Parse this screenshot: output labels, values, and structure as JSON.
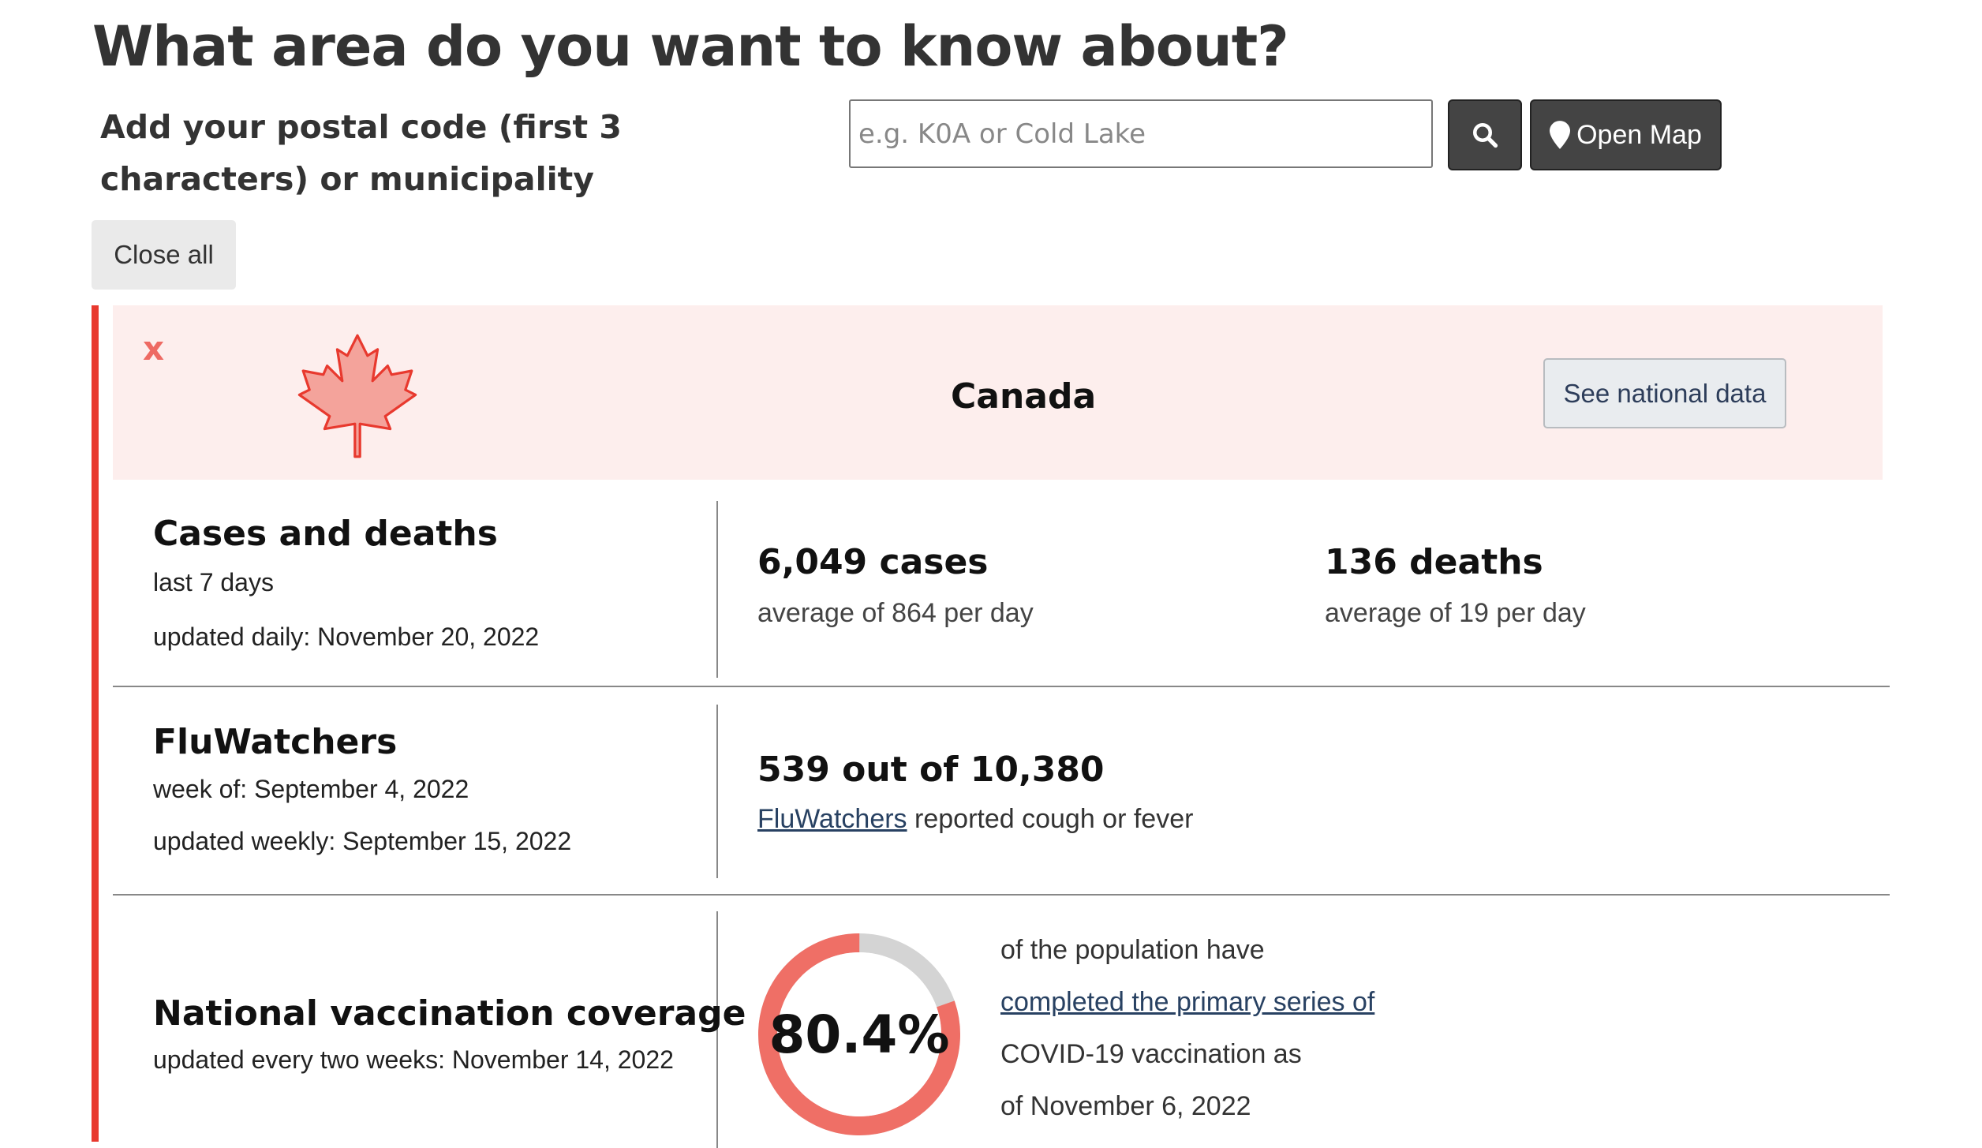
{
  "header": {
    "title": "What area do you want to know about?",
    "search_label": "Add your postal code (first 3 characters) or municipality",
    "search_placeholder": "e.g. K0A or Cold Lake",
    "search_value": "",
    "open_map_label": "Open Map",
    "close_all_label": "Close all"
  },
  "card": {
    "close_label": "x",
    "region": "Canada",
    "national_data_label": "See national data",
    "colors": {
      "accent": "#e8392e",
      "header_bg": "#fdeeed",
      "leaf": "#f4a39b"
    }
  },
  "cases": {
    "title": "Cases and deaths",
    "period": "last 7 days",
    "updated": "updated daily: November 20, 2022",
    "cases_total": "6,049 cases",
    "cases_avg": "average of 864 per day",
    "deaths_total": "136 deaths",
    "deaths_avg": "average of 19 per day"
  },
  "flu": {
    "title": "FluWatchers",
    "week": "week of: September 4, 2022",
    "updated": "updated weekly: September 15, 2022",
    "stat": "539 out of 10,380",
    "link_text": "FluWatchers",
    "stat_rest": "reported cough or fever"
  },
  "vaccination": {
    "title": "National vaccination coverage",
    "updated": "updated every two weeks: November 14, 2022",
    "percent_label": "80.4%",
    "percent_value": 80.4,
    "text_line1": "of the population have",
    "link_text": "completed the primary series of",
    "text_line3": "COVID-19 vaccination as",
    "text_line4": "of November 6, 2022",
    "colors": {
      "filled": "#ef6f66",
      "remaining": "#d4d4d4"
    }
  },
  "icons": [
    "search-icon",
    "map-pin-icon",
    "close-icon",
    "maple-leaf-icon"
  ]
}
